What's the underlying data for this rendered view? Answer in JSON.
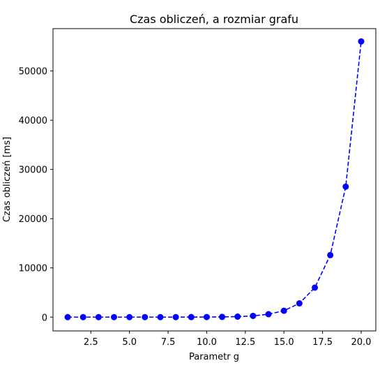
{
  "chart_data": {
    "type": "line",
    "title": "Czas obliczeń, a rozmiar grafu",
    "xlabel": "Parametr g",
    "ylabel": "Czas obliczeń [ms]",
    "xlim": [
      0.05,
      20.95
    ],
    "ylim": [
      -2800,
      58600
    ],
    "xticks": [
      2.5,
      5.0,
      7.5,
      10.0,
      12.5,
      15.0,
      17.5,
      20.0
    ],
    "xtick_labels": [
      "2.5",
      "5.0",
      "7.5",
      "10.0",
      "12.5",
      "15.0",
      "17.5",
      "20.0"
    ],
    "yticks": [
      0,
      10000,
      20000,
      30000,
      40000,
      50000
    ],
    "ytick_labels": [
      "0",
      "10000",
      "20000",
      "30000",
      "40000",
      "50000"
    ],
    "grid": false,
    "series": [
      {
        "color": "#0000ff",
        "line_style": "dashed",
        "marker": "circle",
        "x": [
          1,
          2,
          3,
          4,
          5,
          6,
          7,
          8,
          9,
          10,
          11,
          12,
          13,
          14,
          15,
          16,
          17,
          18,
          19,
          20
        ],
        "y": [
          0,
          0,
          0,
          0,
          0,
          0,
          0,
          0,
          10,
          20,
          50,
          100,
          250,
          600,
          1300,
          2800,
          6000,
          12600,
          26500,
          56000
        ]
      }
    ]
  }
}
